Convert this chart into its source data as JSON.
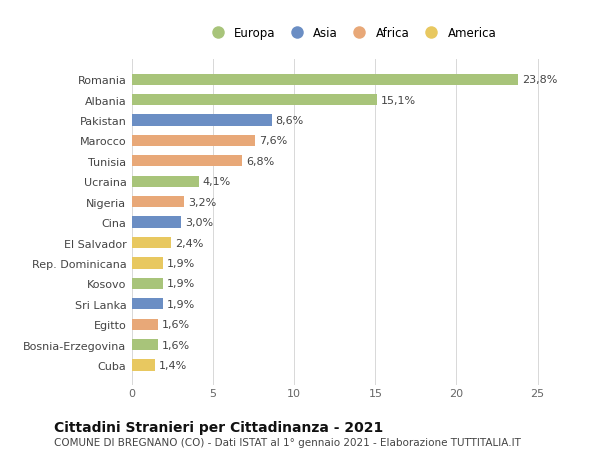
{
  "countries": [
    "Romania",
    "Albania",
    "Pakistan",
    "Marocco",
    "Tunisia",
    "Ucraina",
    "Nigeria",
    "Cina",
    "El Salvador",
    "Rep. Dominicana",
    "Kosovo",
    "Sri Lanka",
    "Egitto",
    "Bosnia-Erzegovina",
    "Cuba"
  ],
  "values": [
    23.8,
    15.1,
    8.6,
    7.6,
    6.8,
    4.1,
    3.2,
    3.0,
    2.4,
    1.9,
    1.9,
    1.9,
    1.6,
    1.6,
    1.4
  ],
  "labels": [
    "23,8%",
    "15,1%",
    "8,6%",
    "7,6%",
    "6,8%",
    "4,1%",
    "3,2%",
    "3,0%",
    "2,4%",
    "1,9%",
    "1,9%",
    "1,9%",
    "1,6%",
    "1,6%",
    "1,4%"
  ],
  "continents": [
    "Europa",
    "Europa",
    "Asia",
    "Africa",
    "Africa",
    "Europa",
    "Africa",
    "Asia",
    "America",
    "America",
    "Europa",
    "Asia",
    "Africa",
    "Europa",
    "America"
  ],
  "colors": {
    "Europa": "#a8c47a",
    "Asia": "#6b8ec4",
    "Africa": "#e8a878",
    "America": "#e8c860"
  },
  "legend_order": [
    "Europa",
    "Asia",
    "Africa",
    "America"
  ],
  "xlim": [
    0,
    27
  ],
  "xticks": [
    0,
    5,
    10,
    15,
    20,
    25
  ],
  "title": "Cittadini Stranieri per Cittadinanza - 2021",
  "subtitle": "COMUNE DI BREGNANO (CO) - Dati ISTAT al 1° gennaio 2021 - Elaborazione TUTTITALIA.IT",
  "background_color": "#ffffff",
  "bar_height": 0.55,
  "title_fontsize": 10,
  "subtitle_fontsize": 7.5,
  "tick_fontsize": 8,
  "label_fontsize": 8,
  "legend_fontsize": 8.5
}
